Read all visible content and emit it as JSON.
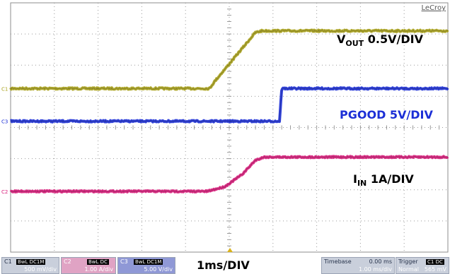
{
  "brand": "LeCroy",
  "timebase_label": "1ms/DIV",
  "colors": {
    "c1": "#a8a11a",
    "c2": "#d81b7a",
    "c3": "#1c2fd6",
    "grid": "#9a9a9a"
  },
  "chart_data": {
    "type": "line",
    "title": "",
    "xlabel": "1ms/DIV",
    "ylabel": "",
    "grid": true,
    "xlim": [
      -5,
      5
    ],
    "ylim": [
      -4,
      4
    ],
    "divisions": {
      "x": 10,
      "y": 8
    },
    "series": [
      {
        "name": "V_OUT 0.5V/DIV",
        "channel": "C1",
        "color": "#a8a11a",
        "x": [
          -5,
          -0.45,
          -0.35,
          0.6,
          0.75,
          5
        ],
        "y": [
          1.25,
          1.25,
          1.45,
          3.05,
          3.1,
          3.1
        ]
      },
      {
        "name": "PGOOD 5V/DIV",
        "channel": "C3",
        "color": "#1c2fd6",
        "x": [
          -5,
          1.15,
          1.2,
          5
        ],
        "y": [
          0.2,
          0.2,
          1.25,
          1.25
        ]
      },
      {
        "name": "I_IN 1A/DIV",
        "channel": "C2",
        "color": "#d81b7a",
        "x": [
          -5,
          -0.5,
          -0.1,
          0.3,
          0.6,
          0.8,
          5
        ],
        "y": [
          -2.05,
          -2.05,
          -1.9,
          -1.5,
          -1.05,
          -0.95,
          -0.95
        ]
      }
    ],
    "annotations": [
      {
        "series": 0,
        "main": "V",
        "sub": "OUT",
        "rest": " 0.5V/DIV"
      },
      {
        "series": 1,
        "main": "PGOOD 5V/DIV",
        "sub": "",
        "rest": ""
      },
      {
        "series": 2,
        "main": "I",
        "sub": "IN",
        "rest": " 1A/DIV"
      }
    ]
  },
  "status_bar": {
    "c1": {
      "tag": "C1",
      "chip": "BwL DC1M",
      "value": "500 mV/div"
    },
    "c2": {
      "tag": "C2",
      "chip": "BwL DC",
      "value": "1.00 A/div"
    },
    "c3": {
      "tag": "C3",
      "chip": "BwL DC1M",
      "value": "5.00 V/div"
    },
    "timebase": {
      "label": "Timebase",
      "offset": "0.00 ms",
      "value": "1.00 ms/div"
    },
    "trigger": {
      "label": "Trigger",
      "chip": "C1 DC",
      "mode": "Normal",
      "level": "565 mV"
    }
  }
}
